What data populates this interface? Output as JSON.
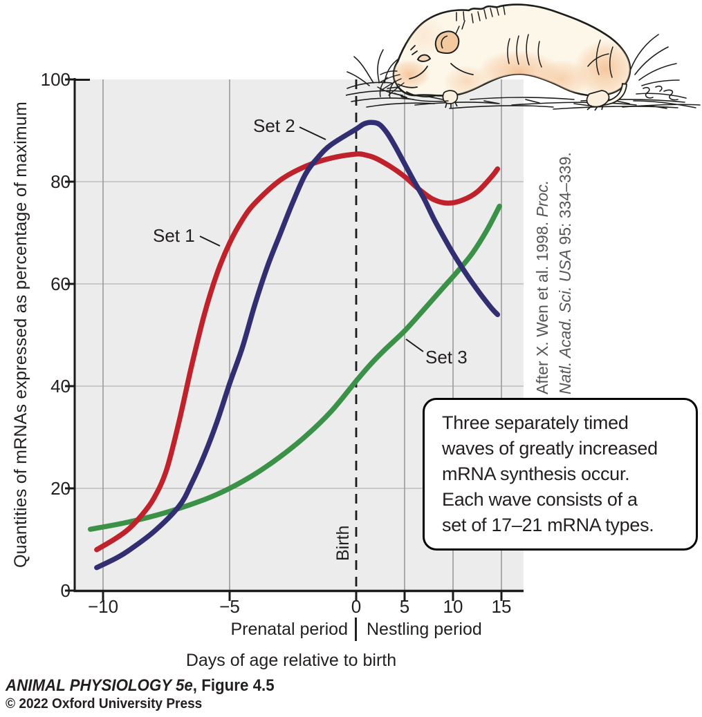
{
  "figure": {
    "y_axis_label": "Quantities of mRNAs expressed as percentage of maximum",
    "x_axis_label": "Days of age relative to birth",
    "prenatal_label": "Prenatal period",
    "nestling_label": "Nestling period",
    "birth_label": "Birth",
    "citation": {
      "line1_regular": "After X. Wen et al. 1998. ",
      "line1_italic": "Proc.",
      "line2_italic": "Natl. Acad. Sci. USA",
      "line2_regular": " 95: 334–339."
    },
    "callout_text": "Three separately timed\nwaves of greatly increased\nmRNA synthesis occur.\nEach wave consists of a\nset of 17–21 mRNA types.",
    "footer": {
      "book_title": "ANIMAL PHYSIOLOGY 5e",
      "figure_ref": ", Figure 4.5",
      "copyright": "© 2022 Oxford University Press"
    },
    "illustration_alt": "Newborn naked mole-rat pup sleeping on nesting material"
  },
  "chart_data": {
    "type": "line",
    "title": "",
    "xlabel": "Days of age relative to birth",
    "ylabel": "Quantities of mRNAs expressed as percentage of maximum",
    "x_tick_values": [
      -10,
      -5,
      0,
      5,
      10,
      15
    ],
    "x_tick_labels": [
      "−10",
      "−5",
      "0",
      "5",
      "10",
      "15"
    ],
    "y_tick_values": [
      0,
      20,
      40,
      60,
      80,
      100
    ],
    "y_tick_labels": [
      "0",
      "20",
      "40",
      "60",
      "80",
      "100"
    ],
    "ylim": [
      0,
      100
    ],
    "xlim": [
      -11,
      17
    ],
    "grid": true,
    "legend_position": "inline curve labels",
    "x_axis_note": "piecewise scale: prenatal day spacing wider than postnatal",
    "birth_line_x": 0,
    "series": [
      {
        "name": "Set 1",
        "color": "#bf222b",
        "points": [
          [
            -10.25,
            8
          ],
          [
            -9.5,
            10.2
          ],
          [
            -9,
            12
          ],
          [
            -8.5,
            14.6
          ],
          [
            -8,
            18
          ],
          [
            -7.5,
            23.5
          ],
          [
            -7,
            33
          ],
          [
            -6.5,
            44
          ],
          [
            -6,
            54
          ],
          [
            -5.5,
            62
          ],
          [
            -5,
            68
          ],
          [
            -4.5,
            72.5
          ],
          [
            -4,
            75.8
          ],
          [
            -3,
            80.3
          ],
          [
            -2,
            83
          ],
          [
            -1,
            84.6
          ],
          [
            0,
            85.4
          ],
          [
            1,
            85.2
          ],
          [
            2,
            84.6
          ],
          [
            3.5,
            83
          ],
          [
            5,
            81
          ],
          [
            6.5,
            78.5
          ],
          [
            8,
            76.5
          ],
          [
            9.5,
            75.8
          ],
          [
            11,
            76.4
          ],
          [
            12.5,
            78
          ],
          [
            14,
            81
          ],
          [
            14.6,
            82.5
          ]
        ]
      },
      {
        "name": "Set 2",
        "color": "#312e72",
        "points": [
          [
            -10.25,
            4.5
          ],
          [
            -9.5,
            6.3
          ],
          [
            -9,
            7.8
          ],
          [
            -8,
            11.5
          ],
          [
            -7,
            16.5
          ],
          [
            -6.5,
            21
          ],
          [
            -6,
            26.5
          ],
          [
            -5.5,
            33
          ],
          [
            -5,
            40.5
          ],
          [
            -4.5,
            47.5
          ],
          [
            -4,
            56
          ],
          [
            -3.5,
            63.5
          ],
          [
            -3,
            69.8
          ],
          [
            -2.5,
            76
          ],
          [
            -2,
            81.5
          ],
          [
            -1.5,
            84.8
          ],
          [
            -1,
            87.2
          ],
          [
            0,
            90.3
          ],
          [
            0.8,
            91.3
          ],
          [
            1.6,
            91.6
          ],
          [
            2.4,
            91.2
          ],
          [
            3.2,
            89.5
          ],
          [
            4,
            87
          ],
          [
            5,
            83.5
          ],
          [
            6,
            80
          ],
          [
            7,
            76.7
          ],
          [
            8,
            72.8
          ],
          [
            9,
            69.3
          ],
          [
            10,
            66
          ],
          [
            11,
            63
          ],
          [
            12,
            60.2
          ],
          [
            13,
            57.6
          ],
          [
            14,
            55.2
          ],
          [
            14.6,
            54
          ]
        ]
      },
      {
        "name": "Set 3",
        "color": "#3b9147",
        "points": [
          [
            -10.5,
            12
          ],
          [
            -9,
            13.4
          ],
          [
            -7.5,
            15.3
          ],
          [
            -6,
            17.8
          ],
          [
            -5,
            20
          ],
          [
            -4,
            22.8
          ],
          [
            -3,
            26.2
          ],
          [
            -2,
            30.2
          ],
          [
            -1,
            35
          ],
          [
            0,
            41
          ],
          [
            1.5,
            44.3
          ],
          [
            3,
            47.2
          ],
          [
            5,
            50.8
          ],
          [
            7,
            55
          ],
          [
            9,
            59.3
          ],
          [
            10.5,
            62.5
          ],
          [
            12,
            66
          ],
          [
            13.5,
            70.5
          ],
          [
            14.8,
            75.2
          ]
        ]
      }
    ]
  },
  "colors": {
    "plot_bg": "#ececec",
    "grid_vertical": "#9e9e9e",
    "grid_horizontal": "#bdbdbd",
    "axis": "#1a1a1a",
    "birth_line": "#1a1a1a",
    "text": "#231f20",
    "citation_text": "#55565a",
    "callout_border": "#000000",
    "callout_bg": "#ffffff"
  }
}
